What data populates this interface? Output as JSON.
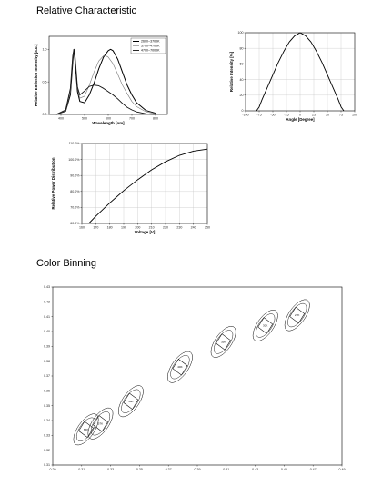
{
  "sections": {
    "relative_title": "Relative Characteristic",
    "binning_title": "Color Binning"
  },
  "chart_data": [
    {
      "type": "line",
      "xlabel": "Wavelength [nm]",
      "ylabel": "Relative Emission Intensity [a.u.]",
      "xticks": [
        400,
        500,
        600,
        700,
        800
      ],
      "yticks": [
        "0.0",
        "0.5",
        "1.0"
      ],
      "xlim": [
        350,
        850
      ],
      "ylim": [
        0,
        1.2
      ],
      "legend_position": "top-right",
      "series": [
        {
          "name": "2600~3700K",
          "color": "#000000",
          "width": 1.0,
          "x": [
            380,
            420,
            440,
            450,
            455,
            460,
            470,
            480,
            500,
            520,
            540,
            560,
            580,
            600,
            610,
            620,
            640,
            660,
            680,
            700,
            720,
            760,
            800
          ],
          "y": [
            0,
            0.05,
            0.3,
            0.8,
            1.0,
            0.8,
            0.35,
            0.2,
            0.18,
            0.3,
            0.48,
            0.7,
            0.88,
            0.98,
            1.0,
            0.98,
            0.85,
            0.65,
            0.45,
            0.3,
            0.18,
            0.06,
            0.02
          ]
        },
        {
          "name": "3700~4700K",
          "color": "#777777",
          "width": 0.6,
          "x": [
            380,
            420,
            440,
            450,
            455,
            460,
            470,
            480,
            500,
            520,
            540,
            560,
            580,
            590,
            600,
            620,
            640,
            660,
            680,
            700,
            720,
            760,
            800
          ],
          "y": [
            0,
            0.06,
            0.35,
            0.85,
            1.0,
            0.85,
            0.4,
            0.25,
            0.28,
            0.45,
            0.65,
            0.82,
            0.9,
            0.9,
            0.88,
            0.78,
            0.62,
            0.45,
            0.32,
            0.2,
            0.12,
            0.04,
            0.01
          ]
        },
        {
          "name": "4700~7000K",
          "color": "#111111",
          "width": 0.9,
          "x": [
            380,
            420,
            440,
            450,
            455,
            460,
            470,
            480,
            500,
            520,
            540,
            560,
            580,
            600,
            620,
            640,
            660,
            680,
            700,
            720,
            760,
            800
          ],
          "y": [
            0,
            0.07,
            0.4,
            0.9,
            1.0,
            0.88,
            0.42,
            0.3,
            0.36,
            0.43,
            0.45,
            0.44,
            0.4,
            0.35,
            0.3,
            0.24,
            0.17,
            0.11,
            0.07,
            0.04,
            0.01,
            0
          ]
        }
      ]
    },
    {
      "type": "line",
      "xlabel": "Angle [Degree]",
      "ylabel": "Relative Intensity [%]",
      "xticks": [
        -100,
        -75,
        -50,
        -25,
        0,
        25,
        50,
        75,
        100
      ],
      "yticks": [
        0,
        20,
        40,
        60,
        80,
        100
      ],
      "xlim": [
        -100,
        100
      ],
      "ylim": [
        0,
        100
      ],
      "grid": true,
      "series": [
        {
          "x": [
            -80,
            -75,
            -70,
            -60,
            -50,
            -40,
            -30,
            -20,
            -10,
            0,
            10,
            20,
            30,
            40,
            50,
            60,
            70,
            75,
            80
          ],
          "y": [
            0,
            5,
            14,
            30,
            46,
            62,
            76,
            88,
            96,
            100,
            96,
            88,
            76,
            62,
            46,
            30,
            14,
            5,
            0
          ]
        }
      ]
    },
    {
      "type": "line",
      "xlabel": "Voltage [V]",
      "ylabel": "Relative Power Distribution",
      "xticks": [
        160,
        170,
        180,
        190,
        200,
        210,
        220,
        230,
        240,
        250
      ],
      "yticks": [
        "60.0%",
        "70.0%",
        "80.0%",
        "90.0%",
        "100.0%",
        "110.0%"
      ],
      "xlim": [
        160,
        250
      ],
      "ylim": [
        60,
        110
      ],
      "grid": true,
      "series": [
        {
          "x": [
            165,
            170,
            180,
            190,
            200,
            210,
            220,
            230,
            240,
            250
          ],
          "y": [
            60.0,
            64.5,
            72.8,
            80.5,
            87.3,
            93.5,
            98.6,
            102.6,
            105.2,
            106.5
          ]
        }
      ]
    },
    {
      "type": "scatter",
      "xticks": [
        "0.29",
        "0.31",
        "0.33",
        "0.35",
        "0.37",
        "0.39",
        "0.41",
        "0.43",
        "0.45",
        "0.47",
        "0.49"
      ],
      "yticks": [
        "0.31",
        "0.32",
        "0.33",
        "0.34",
        "0.35",
        "0.36",
        "0.37",
        "0.38",
        "0.39",
        "0.40",
        "0.41",
        "0.42",
        "0.43"
      ],
      "xlim": [
        0.29,
        0.49
      ],
      "ylim": [
        0.31,
        0.43
      ],
      "bins": [
        {
          "label": "65K",
          "cx": 0.313,
          "cy": 0.334
        },
        {
          "label": "57K",
          "cx": 0.323,
          "cy": 0.338
        },
        {
          "label": "50K",
          "cx": 0.344,
          "cy": 0.353
        },
        {
          "label": "40K",
          "cx": 0.378,
          "cy": 0.376
        },
        {
          "label": "35K",
          "cx": 0.408,
          "cy": 0.393
        },
        {
          "label": "30K",
          "cx": 0.437,
          "cy": 0.404
        },
        {
          "label": "27K",
          "cx": 0.459,
          "cy": 0.411
        }
      ]
    }
  ]
}
